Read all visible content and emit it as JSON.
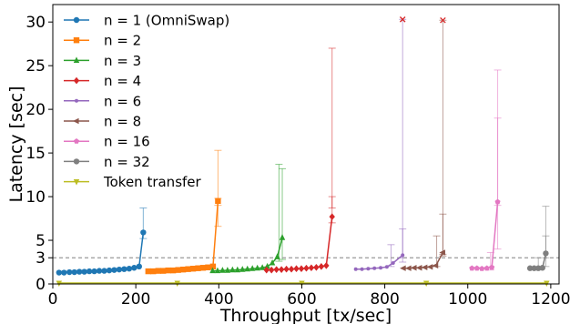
{
  "chart_data": {
    "type": "line",
    "title": "",
    "xlabel": "Throughput [tx/sec]",
    "ylabel": "Latency [sec]",
    "xlim": [
      0,
      1220
    ],
    "ylim": [
      0,
      32
    ],
    "xticks": [
      0,
      200,
      400,
      600,
      800,
      1000,
      1200
    ],
    "yticks": [
      0,
      3,
      5,
      10,
      15,
      20,
      25,
      30
    ],
    "grid": false,
    "legend": "top-left",
    "reference_line": {
      "y": 3,
      "style": "dashed",
      "color": "#999999"
    },
    "series": [
      {
        "name": "n = 1 (OmniSwap)",
        "color": "#1f77b4",
        "marker": "circle",
        "x": [
          15,
          27,
          40,
          52,
          64,
          76,
          88,
          100,
          112,
          124,
          136,
          148,
          160,
          172,
          184,
          196,
          208,
          218
        ],
        "y": [
          1.3,
          1.3,
          1.35,
          1.35,
          1.4,
          1.4,
          1.45,
          1.45,
          1.5,
          1.5,
          1.55,
          1.6,
          1.65,
          1.7,
          1.75,
          1.85,
          2.0,
          5.9
        ],
        "errorbars": [
          {
            "x": 218,
            "low": 5.2,
            "high": 8.7
          }
        ]
      },
      {
        "name": "n = 2",
        "color": "#ff7f0e",
        "marker": "square",
        "x": [
          230,
          242,
          254,
          266,
          278,
          290,
          302,
          314,
          326,
          338,
          350,
          362,
          374,
          386,
          398
        ],
        "y": [
          1.45,
          1.45,
          1.5,
          1.5,
          1.55,
          1.55,
          1.6,
          1.65,
          1.7,
          1.75,
          1.8,
          1.85,
          1.9,
          2.0,
          9.5
        ],
        "errorbars": [
          {
            "x": 398,
            "low": 6.6,
            "high": 15.3
          },
          {
            "x": 398,
            "low": 9.0,
            "high": 9.8
          }
        ]
      },
      {
        "name": "n = 3",
        "color": "#2ca02c",
        "marker": "triangle-up",
        "x": [
          385,
          397,
          409,
          421,
          433,
          445,
          457,
          469,
          481,
          493,
          505,
          517,
          529,
          541,
          553
        ],
        "y": [
          1.5,
          1.5,
          1.55,
          1.55,
          1.6,
          1.6,
          1.65,
          1.7,
          1.75,
          1.8,
          1.85,
          2.0,
          2.4,
          3.1,
          5.3
        ],
        "errorbars": [
          {
            "x": 545,
            "low": 2.6,
            "high": 13.7
          },
          {
            "x": 553,
            "low": 2.8,
            "high": 13.2
          }
        ]
      },
      {
        "name": "n = 4",
        "color": "#d62728",
        "marker": "diamond",
        "x": [
          515,
          527,
          539,
          551,
          563,
          575,
          587,
          599,
          611,
          623,
          635,
          647,
          659,
          673
        ],
        "y": [
          1.6,
          1.6,
          1.65,
          1.65,
          1.7,
          1.7,
          1.75,
          1.75,
          1.8,
          1.85,
          1.9,
          2.0,
          2.1,
          7.7
        ],
        "errorbars": [
          {
            "x": 673,
            "low": 7.0,
            "high": 27.0
          },
          {
            "x": 673,
            "low": 8.7,
            "high": 10.0
          }
        ]
      },
      {
        "name": "n = 6",
        "color": "#9467bd",
        "marker": "point",
        "x": [
          730,
          745,
          760,
          775,
          790,
          805,
          820,
          843
        ],
        "y": [
          1.7,
          1.7,
          1.75,
          1.8,
          1.85,
          1.95,
          2.4,
          3.3
        ],
        "errorbars": [
          {
            "x": 843,
            "low": 2.5,
            "high": 30.3
          },
          {
            "x": 843,
            "low": 3.0,
            "high": 6.3
          },
          {
            "x": 815,
            "low": 2.0,
            "high": 4.5
          }
        ]
      },
      {
        "name": "n = 8",
        "color": "#8c564b",
        "marker": "triangle-left",
        "x": [
          845,
          858,
          871,
          884,
          897,
          910,
          923,
          940
        ],
        "y": [
          1.8,
          1.8,
          1.85,
          1.85,
          1.9,
          1.95,
          2.1,
          3.6
        ],
        "errorbars": [
          {
            "x": 940,
            "low": 3.2,
            "high": 30.2
          },
          {
            "x": 940,
            "low": 3.4,
            "high": 8.0
          },
          {
            "x": 925,
            "low": 2.0,
            "high": 5.5
          }
        ]
      },
      {
        "name": "n = 16",
        "color": "#e377c2",
        "marker": "pentagon",
        "x": [
          1010,
          1022,
          1034,
          1046,
          1058,
          1072
        ],
        "y": [
          1.8,
          1.8,
          1.75,
          1.8,
          1.9,
          9.4
        ],
        "errorbars": [
          {
            "x": 1072,
            "low": 4.0,
            "high": 24.5
          },
          {
            "x": 1072,
            "low": 9.0,
            "high": 19.0
          },
          {
            "x": 1055,
            "low": 1.6,
            "high": 3.6
          }
        ]
      },
      {
        "name": "n = 32",
        "color": "#7f7f7f",
        "marker": "circle",
        "x": [
          1150,
          1160,
          1170,
          1180,
          1188
        ],
        "y": [
          1.8,
          1.8,
          1.8,
          1.85,
          3.5
        ],
        "errorbars": [
          {
            "x": 1188,
            "low": 2.0,
            "high": 8.9
          },
          {
            "x": 1188,
            "low": 3.0,
            "high": 5.5
          },
          {
            "x": 1170,
            "low": 1.6,
            "high": 3.0
          }
        ]
      },
      {
        "name": "Token transfer",
        "color": "#bcbd22",
        "marker": "triangle-down",
        "x": [
          15,
          300,
          600,
          900,
          1190
        ],
        "y": [
          0.1,
          0.1,
          0.1,
          0.1,
          0.1
        ],
        "errorbars": []
      }
    ],
    "annotations": [
      {
        "type": "x-marker",
        "x": 843,
        "y": 30.3,
        "color": "#d62728"
      },
      {
        "type": "x-marker",
        "x": 940,
        "y": 30.2,
        "color": "#d62728"
      }
    ]
  }
}
